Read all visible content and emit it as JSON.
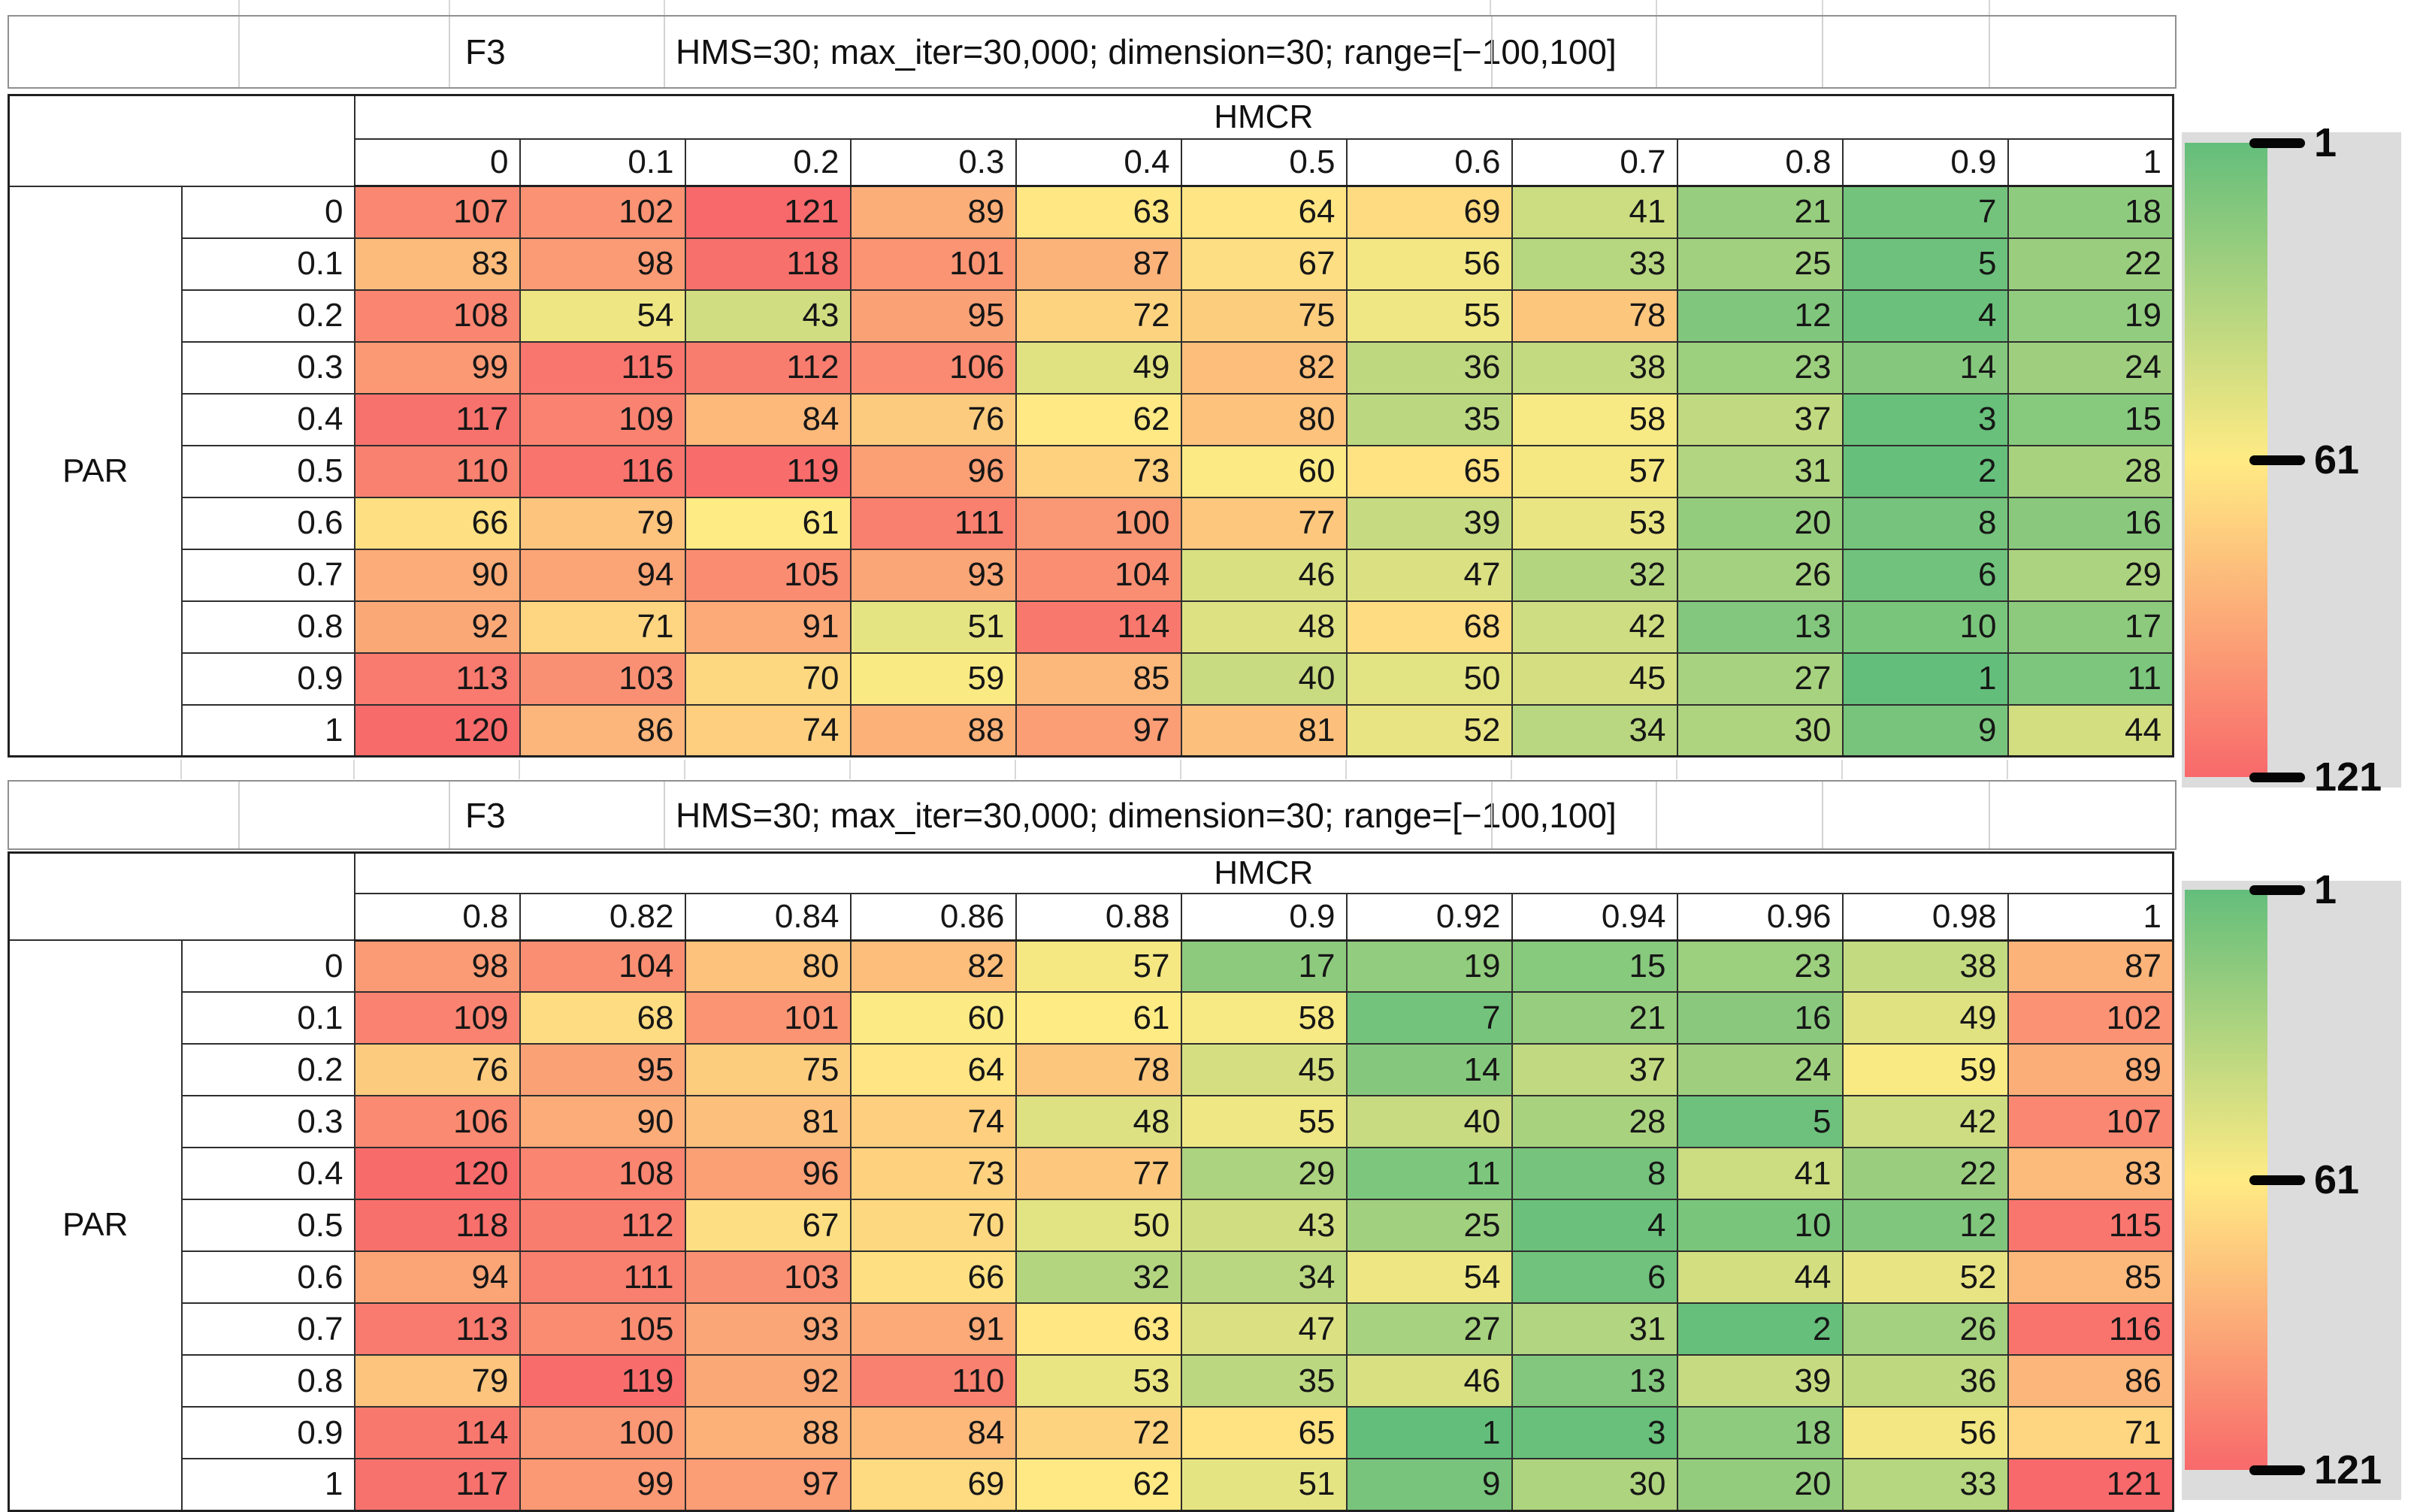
{
  "titles": {
    "label": "F3",
    "params": "HMS=30; max_iter=30,000; dimension=30; range=[−100,100]"
  },
  "axis": {
    "col_label": "HMCR",
    "row_label": "PAR"
  },
  "legend": {
    "ticks": [
      "1",
      "61",
      "121"
    ]
  },
  "colors": {
    "accent_min_green": "#63BE7B",
    "accent_mid_yellow": "#FFEB84",
    "accent_max_red": "#F8696B",
    "legend_panel_gray": "#dcdcdc"
  },
  "chart_data": [
    {
      "type": "heatmap",
      "title": "F3",
      "subtitle": "HMS=30; max_iter=30,000; dimension=30; range=[−100,100]",
      "xlabel": "HMCR",
      "ylabel": "PAR",
      "x": [
        "0",
        "0.1",
        "0.2",
        "0.3",
        "0.4",
        "0.5",
        "0.6",
        "0.7",
        "0.8",
        "0.9",
        "1"
      ],
      "y": [
        "0",
        "0.1",
        "0.2",
        "0.3",
        "0.4",
        "0.5",
        "0.6",
        "0.7",
        "0.8",
        "0.9",
        "1"
      ],
      "values": [
        [
          107,
          102,
          121,
          89,
          63,
          64,
          69,
          41,
          21,
          7,
          18
        ],
        [
          83,
          98,
          118,
          101,
          87,
          67,
          56,
          33,
          25,
          5,
          22
        ],
        [
          108,
          54,
          43,
          95,
          72,
          75,
          55,
          78,
          12,
          4,
          19
        ],
        [
          99,
          115,
          112,
          106,
          49,
          82,
          36,
          38,
          23,
          14,
          24
        ],
        [
          117,
          109,
          84,
          76,
          62,
          80,
          35,
          58,
          37,
          3,
          15
        ],
        [
          110,
          116,
          119,
          96,
          73,
          60,
          65,
          57,
          31,
          2,
          28
        ],
        [
          66,
          79,
          61,
          111,
          100,
          77,
          39,
          53,
          20,
          8,
          16
        ],
        [
          90,
          94,
          105,
          93,
          104,
          46,
          47,
          32,
          26,
          6,
          29
        ],
        [
          92,
          71,
          91,
          51,
          114,
          48,
          68,
          42,
          13,
          10,
          17
        ],
        [
          113,
          103,
          70,
          59,
          85,
          40,
          50,
          45,
          27,
          1,
          11
        ],
        [
          120,
          86,
          74,
          88,
          97,
          81,
          52,
          34,
          30,
          9,
          44
        ]
      ],
      "color_scale": {
        "min_value": 1,
        "mid_value": 61,
        "max_value": 121,
        "min_color": "#63BE7B",
        "mid_color": "#FFEB84",
        "max_color": "#F8696B"
      },
      "legend_ticks": [
        1,
        61,
        121
      ],
      "legend_position": "right"
    },
    {
      "type": "heatmap",
      "title": "F3",
      "subtitle": "HMS=30; max_iter=30,000; dimension=30; range=[−100,100]",
      "xlabel": "HMCR",
      "ylabel": "PAR",
      "x": [
        "0.8",
        "0.82",
        "0.84",
        "0.86",
        "0.88",
        "0.9",
        "0.92",
        "0.94",
        "0.96",
        "0.98",
        "1"
      ],
      "y": [
        "0",
        "0.1",
        "0.2",
        "0.3",
        "0.4",
        "0.5",
        "0.6",
        "0.7",
        "0.8",
        "0.9",
        "1"
      ],
      "values": [
        [
          98,
          104,
          80,
          82,
          57,
          17,
          19,
          15,
          23,
          38,
          87
        ],
        [
          109,
          68,
          101,
          60,
          61,
          58,
          7,
          21,
          16,
          49,
          102
        ],
        [
          76,
          95,
          75,
          64,
          78,
          45,
          14,
          37,
          24,
          59,
          89
        ],
        [
          106,
          90,
          81,
          74,
          48,
          55,
          40,
          28,
          5,
          42,
          107
        ],
        [
          120,
          108,
          96,
          73,
          77,
          29,
          11,
          8,
          41,
          22,
          83
        ],
        [
          118,
          112,
          67,
          70,
          50,
          43,
          25,
          4,
          10,
          12,
          115
        ],
        [
          94,
          111,
          103,
          66,
          32,
          34,
          54,
          6,
          44,
          52,
          85
        ],
        [
          113,
          105,
          93,
          91,
          63,
          47,
          27,
          31,
          2,
          26,
          116
        ],
        [
          79,
          119,
          92,
          110,
          53,
          35,
          46,
          13,
          39,
          36,
          86
        ],
        [
          114,
          100,
          88,
          84,
          72,
          65,
          1,
          3,
          18,
          56,
          71
        ],
        [
          117,
          99,
          97,
          69,
          62,
          51,
          9,
          30,
          20,
          33,
          121
        ]
      ],
      "color_scale": {
        "min_value": 1,
        "mid_value": 61,
        "max_value": 121,
        "min_color": "#63BE7B",
        "mid_color": "#FFEB84",
        "max_color": "#F8696B"
      },
      "legend_ticks": [
        1,
        61,
        121
      ],
      "legend_position": "right"
    }
  ]
}
